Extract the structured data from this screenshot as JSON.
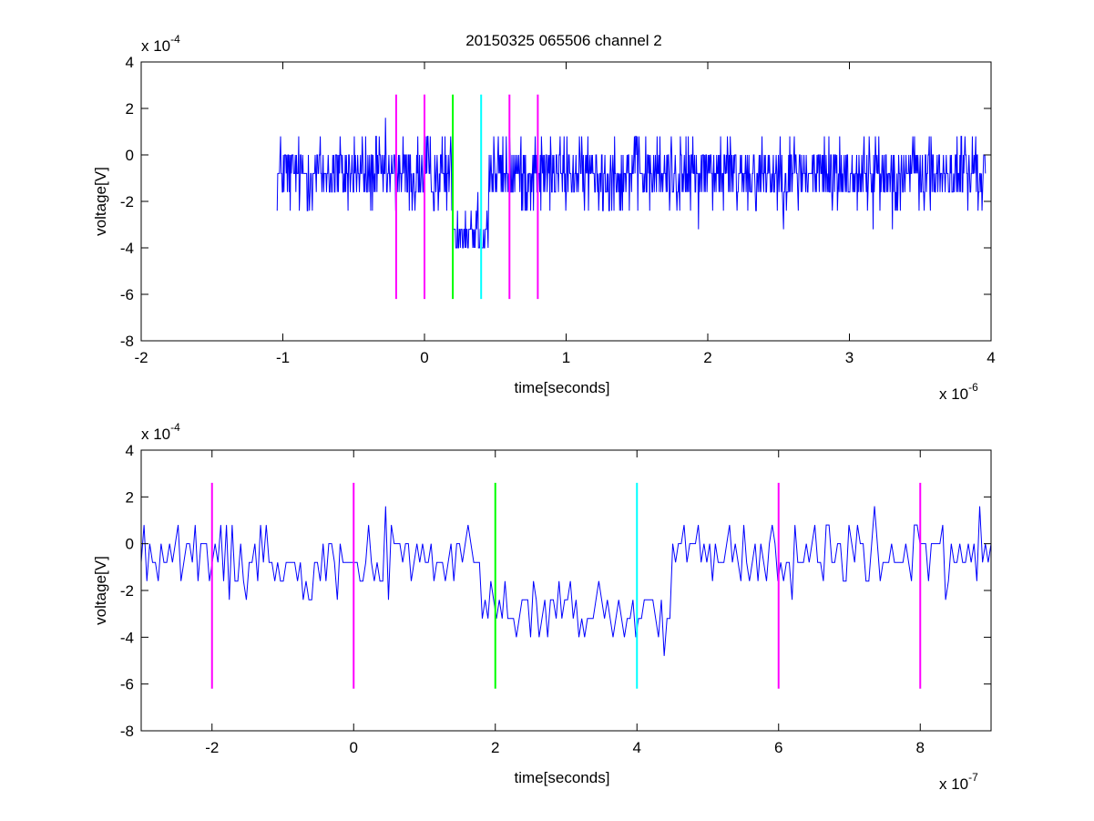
{
  "chart_data": [
    {
      "type": "line",
      "title": "20150325 065506 channel 2",
      "xlabel": "time[seconds]",
      "ylabel": "voltage[V]",
      "x_multiplier": "x 10",
      "x_exponent": "-6",
      "y_multiplier": "x 10",
      "y_exponent": "-4",
      "xlim": [
        -2,
        4
      ],
      "ylim": [
        -8,
        4
      ],
      "xticks": [
        "-2",
        "-1",
        "0",
        "1",
        "2",
        "3",
        "4"
      ],
      "yticks": [
        "-8",
        "-6",
        "-4",
        "-2",
        "0",
        "2",
        "4"
      ],
      "signal": {
        "color": "#0000ff",
        "x_start": -1.04,
        "x_end": 3.96,
        "points": 1250,
        "noise_levels": [
          -4.0,
          -3.2,
          -2.4,
          -1.6,
          -0.8,
          0.0,
          0.8,
          1.6,
          2.4
        ],
        "baseline": -0.8,
        "dip": {
          "from": 0.2,
          "to": 0.45,
          "level": -3.2
        }
      },
      "markers": [
        {
          "x": -0.2,
          "color": "#ff00ff"
        },
        {
          "x": 0.0,
          "color": "#ff00ff"
        },
        {
          "x": 0.2,
          "color": "#00ff00"
        },
        {
          "x": 0.4,
          "color": "#00ffff"
        },
        {
          "x": 0.6,
          "color": "#ff00ff"
        },
        {
          "x": 0.8,
          "color": "#ff00ff"
        }
      ],
      "marker_range": [
        -6.2,
        2.6
      ]
    },
    {
      "type": "line",
      "title": "",
      "xlabel": "time[seconds]",
      "ylabel": "voltage[V]",
      "x_multiplier": "x 10",
      "x_exponent": "-7",
      "y_multiplier": "x 10",
      "y_exponent": "-4",
      "xlim": [
        -3,
        9
      ],
      "ylim": [
        -8,
        4
      ],
      "xticks": [
        "-2",
        "0",
        "2",
        "4",
        "6",
        "8"
      ],
      "xtick_values": [
        -2,
        0,
        2,
        4,
        6,
        8
      ],
      "yticks": [
        "-8",
        "-6",
        "-4",
        "-2",
        "0",
        "2",
        "4"
      ],
      "signal": {
        "color": "#0000ff",
        "x_start": -3,
        "x_end": 9,
        "points": 300,
        "noise_levels": [
          -5.6,
          -4.8,
          -4.0,
          -3.2,
          -2.4,
          -1.6,
          -0.8,
          0.0,
          0.8,
          1.6,
          2.4
        ],
        "baseline": -0.6,
        "dip": {
          "from": 1.8,
          "to": 4.5,
          "level": -3.0
        }
      },
      "markers": [
        {
          "x": -2,
          "color": "#ff00ff"
        },
        {
          "x": 0,
          "color": "#ff00ff"
        },
        {
          "x": 2,
          "color": "#00ff00"
        },
        {
          "x": 4,
          "color": "#00ffff"
        },
        {
          "x": 6,
          "color": "#ff00ff"
        },
        {
          "x": 8,
          "color": "#ff00ff"
        }
      ],
      "marker_range": [
        -6.2,
        2.6
      ]
    }
  ]
}
